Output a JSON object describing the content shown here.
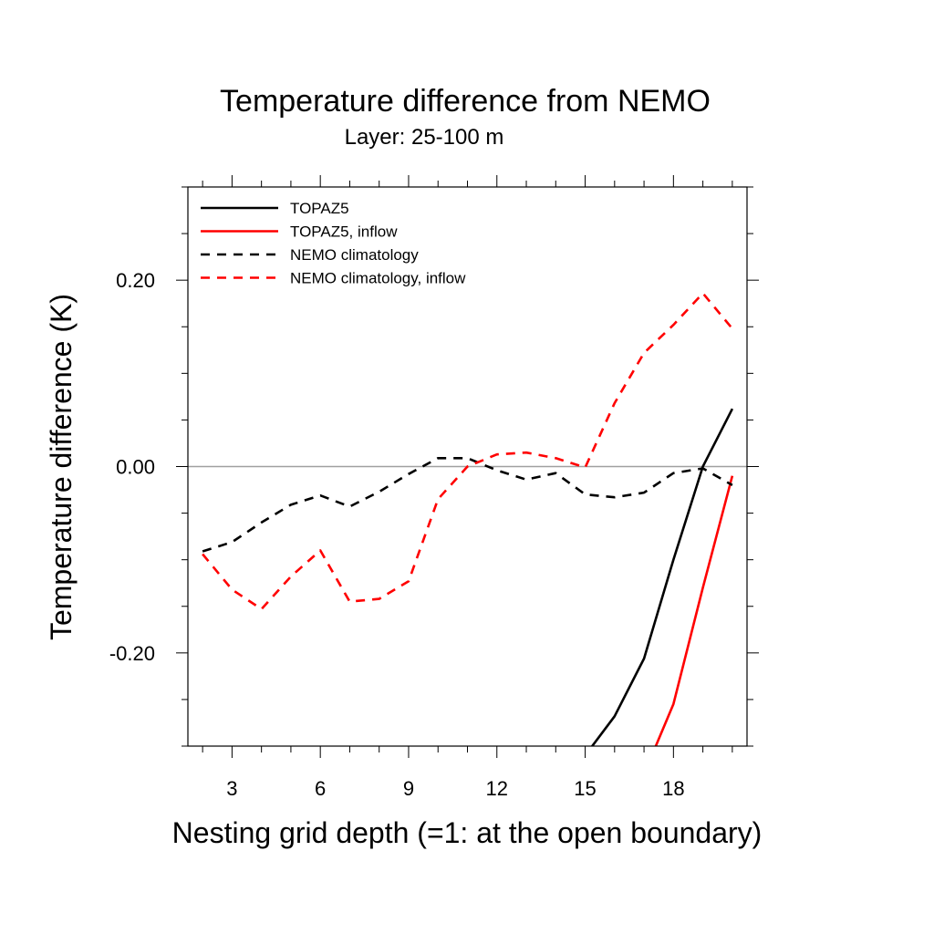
{
  "chart_data": {
    "type": "line",
    "title": "Temperature difference from NEMO",
    "subtitle": "Layer: 25-100 m",
    "xlabel": "Nesting grid depth (=1: at the open boundary)",
    "ylabel": "Temperature difference (K)",
    "xlim": [
      1.5,
      20.5
    ],
    "ylim": [
      -0.3,
      0.3
    ],
    "x_ticks": [
      3,
      6,
      9,
      12,
      15,
      18
    ],
    "x_tick_labels": [
      "3",
      "6",
      "9",
      "12",
      "15",
      "18"
    ],
    "y_ticks": [
      -0.2,
      0.0,
      0.2
    ],
    "y_tick_labels": [
      "-0.20",
      "0.00",
      "0.20"
    ],
    "reference_line": 0,
    "legend_position": "top-left",
    "series": [
      {
        "name": "TOPAZ5",
        "color": "#000000",
        "dash": "solid",
        "x": [
          15,
          16,
          17,
          18,
          19,
          20
        ],
        "y": [
          -0.31,
          -0.268,
          -0.206,
          -0.1,
          0.0,
          0.062
        ]
      },
      {
        "name": "TOPAZ5, inflow",
        "color": "#ff0000",
        "dash": "solid",
        "x": [
          17,
          18,
          19,
          20
        ],
        "y": [
          -0.33,
          -0.255,
          -0.13,
          -0.01
        ]
      },
      {
        "name": "NEMO climatology",
        "color": "#000000",
        "dash": "dashed",
        "x": [
          2,
          3,
          4,
          5,
          6,
          7,
          8,
          9,
          10,
          11,
          12,
          13,
          14,
          15,
          16,
          17,
          18,
          19,
          20
        ],
        "y": [
          -0.091,
          -0.081,
          -0.06,
          -0.041,
          -0.031,
          -0.043,
          -0.027,
          -0.008,
          0.009,
          0.009,
          -0.004,
          -0.014,
          -0.007,
          -0.03,
          -0.033,
          -0.028,
          -0.007,
          -0.002,
          -0.02
        ]
      },
      {
        "name": "NEMO climatology, inflow",
        "color": "#ff0000",
        "dash": "dashed",
        "x": [
          2,
          3,
          4,
          5,
          6,
          7,
          8,
          9,
          10,
          11,
          12,
          13,
          14,
          15,
          16,
          17,
          18,
          19,
          20
        ],
        "y": [
          -0.094,
          -0.132,
          -0.153,
          -0.118,
          -0.09,
          -0.145,
          -0.142,
          -0.123,
          -0.035,
          0.0,
          0.013,
          0.015,
          0.009,
          -0.001,
          0.068,
          0.122,
          0.152,
          0.186,
          0.148
        ]
      }
    ]
  }
}
